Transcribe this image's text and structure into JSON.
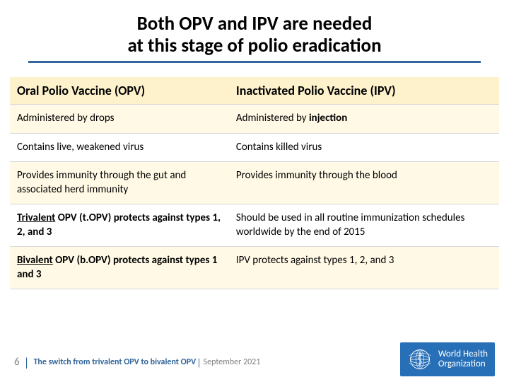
{
  "title": {
    "line1": "Both OPV and IPV are needed",
    "line2": "at this stage of polio eradication"
  },
  "colors": {
    "accent": "#33669a",
    "header_bg": "#fef2cc",
    "alt_row_bg": "#fff9e6",
    "who_blue": "#276fb7"
  },
  "table": {
    "headers": [
      "Oral Polio Vaccine (OPV)",
      "Inactivated Polio Vaccine (IPV)"
    ],
    "rows": [
      {
        "left_html": "Administered by drops",
        "right_html": "Administered by <b>injection</b>",
        "alt": true
      },
      {
        "left_html": "Contains live, weakened virus",
        "right_html": "Contains killed virus",
        "alt": false
      },
      {
        "left_html": "Provides immunity through the gut and associated herd immunity",
        "right_html": "Provides immunity through the blood",
        "alt": true
      },
      {
        "left_html": "<b><span class=\"underline\">Trivalent</span> OPV (t.OPV) protects against types 1, 2, and 3</b>",
        "right_html": "Should be used in all routine immunization schedules worldwide by the end of 2015",
        "alt": false
      },
      {
        "left_html": "<b><span class=\"underline\">Bivalent</span> OPV (b.OPV) protects against types 1 and 3</b>",
        "right_html": "IPV protects against types 1, 2, and 3",
        "alt": true
      }
    ]
  },
  "footer": {
    "page_number": "6",
    "title": "The switch from trivalent OPV to bivalent  OPV",
    "date": "September 2021",
    "org_line1": "World Health",
    "org_line2": "Organization"
  }
}
